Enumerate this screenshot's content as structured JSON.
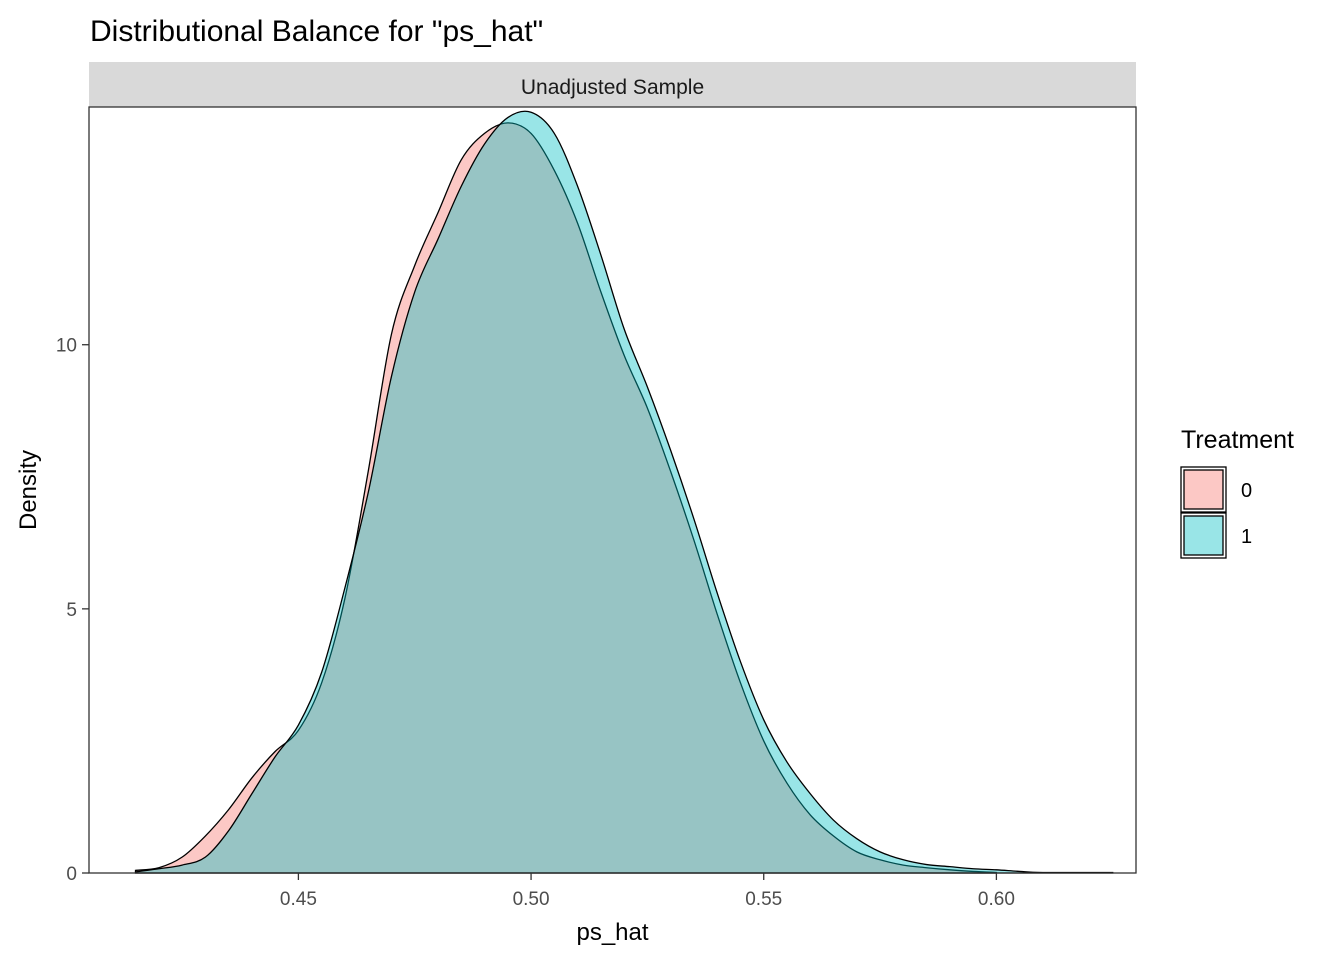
{
  "chart_data": {
    "type": "area",
    "title": "Distributional Balance for \"ps_hat\"",
    "facet_label": "Unadjusted Sample",
    "xlabel": "ps_hat",
    "ylabel": "Density",
    "xlim": [
      0.405,
      0.63
    ],
    "ylim": [
      0,
      14.5
    ],
    "x_ticks": [
      0.45,
      0.5,
      0.55,
      0.6
    ],
    "x_tick_labels": [
      "0.45",
      "0.50",
      "0.55",
      "0.60"
    ],
    "y_ticks": [
      0,
      5,
      10
    ],
    "y_tick_labels": [
      "0",
      "5",
      "10"
    ],
    "grid": false,
    "legend": {
      "title": "Treatment",
      "position": "right"
    },
    "series": [
      {
        "name": "0",
        "color": "#F8766D",
        "x": [
          0.415,
          0.42,
          0.425,
          0.43,
          0.435,
          0.44,
          0.445,
          0.45,
          0.455,
          0.46,
          0.465,
          0.47,
          0.475,
          0.48,
          0.485,
          0.49,
          0.495,
          0.5,
          0.505,
          0.51,
          0.515,
          0.52,
          0.525,
          0.53,
          0.535,
          0.54,
          0.545,
          0.55,
          0.555,
          0.56,
          0.565,
          0.57,
          0.575,
          0.58,
          0.585,
          0.59,
          0.595,
          0.6
        ],
        "values": [
          0.05,
          0.1,
          0.3,
          0.7,
          1.2,
          1.8,
          2.3,
          2.7,
          3.6,
          5.2,
          7.6,
          10.2,
          11.5,
          12.5,
          13.5,
          14.0,
          14.2,
          14.0,
          13.3,
          12.3,
          11.0,
          9.8,
          8.8,
          7.6,
          6.3,
          4.9,
          3.6,
          2.5,
          1.7,
          1.1,
          0.7,
          0.4,
          0.25,
          0.15,
          0.1,
          0.06,
          0.03,
          0.01
        ]
      },
      {
        "name": "1",
        "color": "#00BFC4",
        "x": [
          0.415,
          0.42,
          0.425,
          0.43,
          0.435,
          0.44,
          0.445,
          0.45,
          0.455,
          0.46,
          0.465,
          0.47,
          0.475,
          0.48,
          0.485,
          0.49,
          0.495,
          0.5,
          0.505,
          0.51,
          0.515,
          0.52,
          0.525,
          0.53,
          0.535,
          0.54,
          0.545,
          0.55,
          0.555,
          0.56,
          0.565,
          0.57,
          0.575,
          0.58,
          0.585,
          0.59,
          0.595,
          0.6,
          0.605,
          0.61,
          0.625
        ],
        "values": [
          0.02,
          0.08,
          0.15,
          0.3,
          0.8,
          1.5,
          2.2,
          2.8,
          3.8,
          5.4,
          7.2,
          9.4,
          11.0,
          12.0,
          13.0,
          13.8,
          14.3,
          14.4,
          14.0,
          13.0,
          11.7,
          10.3,
          9.2,
          8.0,
          6.7,
          5.3,
          4.0,
          2.9,
          2.1,
          1.5,
          1.0,
          0.65,
          0.4,
          0.25,
          0.16,
          0.12,
          0.08,
          0.06,
          0.03,
          0.01,
          0.01
        ]
      }
    ]
  }
}
